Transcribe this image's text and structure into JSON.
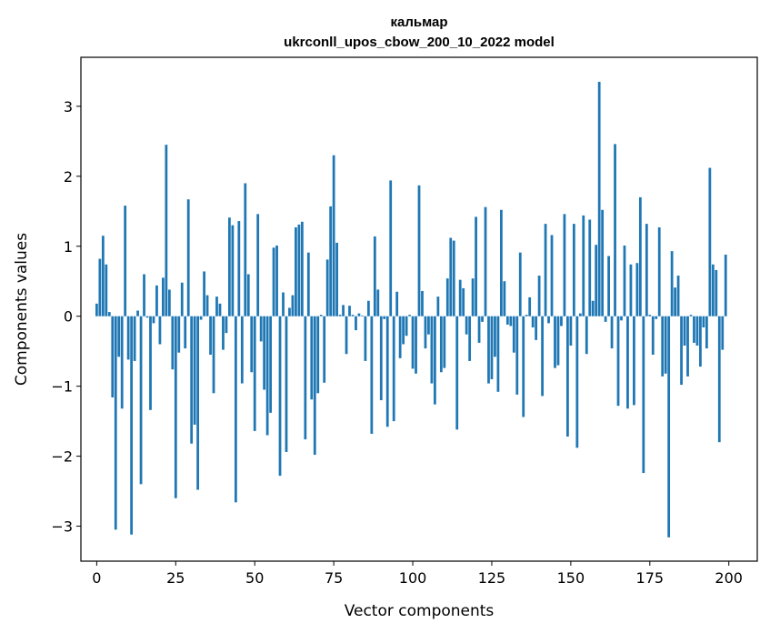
{
  "chart_data": {
    "type": "bar",
    "title": "кальмар",
    "subtitle": "ukrconll_upos_cbow_200_10_2022 model",
    "xlabel": "Vector components",
    "ylabel": "Components values",
    "xlim": [
      -5,
      209
    ],
    "ylim": [
      -3.5,
      3.7
    ],
    "x_ticks": [
      0,
      25,
      50,
      75,
      100,
      125,
      150,
      175,
      200
    ],
    "y_ticks": [
      -3,
      -2,
      -1,
      0,
      1,
      2,
      3
    ],
    "grid": false,
    "color": "#1f77b4",
    "values": [
      0.18,
      0.82,
      1.15,
      0.74,
      0.06,
      -1.16,
      -3.05,
      -0.58,
      -1.32,
      1.58,
      -0.62,
      -3.12,
      -0.64,
      0.08,
      -2.4,
      0.6,
      -0.02,
      -1.34,
      -0.1,
      0.44,
      -0.4,
      0.55,
      2.45,
      0.38,
      -0.76,
      -2.6,
      -0.52,
      0.48,
      -0.46,
      1.67,
      -1.82,
      -1.55,
      -2.48,
      -0.05,
      0.64,
      0.3,
      -0.55,
      -1.1,
      0.28,
      0.18,
      -0.48,
      -0.24,
      1.41,
      1.3,
      -2.66,
      1.36,
      -0.96,
      1.9,
      0.6,
      -0.8,
      -1.64,
      1.46,
      -0.36,
      -1.05,
      -1.7,
      -1.38,
      0.98,
      1.01,
      -2.28,
      0.34,
      -1.94,
      0.12,
      0.3,
      1.27,
      1.31,
      1.35,
      -1.76,
      0.91,
      -1.19,
      -1.98,
      -1.1,
      0.02,
      -0.95,
      0.81,
      1.57,
      2.3,
      1.05,
      0.02,
      0.16,
      -0.54,
      0.15,
      0.02,
      -0.2,
      0.04,
      0.01,
      -0.64,
      0.22,
      -1.68,
      1.14,
      0.38,
      -1.2,
      -0.04,
      -1.58,
      1.94,
      -1.5,
      0.35,
      -0.6,
      -0.4,
      -0.28,
      0.02,
      -0.75,
      -0.82,
      1.87,
      0.36,
      -0.46,
      -0.26,
      -0.96,
      -1.26,
      0.28,
      -0.8,
      -0.74,
      0.54,
      1.12,
      1.08,
      -1.62,
      0.52,
      0.4,
      -0.26,
      -0.64,
      0.54,
      1.42,
      -0.38,
      -0.08,
      1.56,
      -0.96,
      -0.9,
      -0.58,
      -1.08,
      1.52,
      0.5,
      -0.12,
      -0.14,
      -0.52,
      -1.12,
      0.91,
      -1.44,
      0.02,
      0.27,
      -0.16,
      -0.34,
      0.58,
      -1.14,
      1.32,
      -0.1,
      1.16,
      -0.74,
      -0.7,
      -0.14,
      1.46,
      -1.72,
      -0.42,
      1.32,
      -1.88,
      0.04,
      1.44,
      -0.54,
      1.38,
      0.22,
      1.02,
      3.35,
      1.52,
      -0.08,
      0.86,
      -0.46,
      2.46,
      -1.28,
      -0.06,
      1.01,
      -1.32,
      0.74,
      -1.27,
      0.76,
      1.7,
      -2.24,
      1.32,
      0.02,
      -0.55,
      -0.04,
      1.27,
      -0.86,
      -0.82,
      -3.16,
      0.93,
      0.41,
      0.58,
      -0.98,
      -0.42,
      -0.86,
      0.02,
      -0.38,
      -0.42,
      -0.72,
      -0.16,
      -0.46,
      2.12,
      0.74,
      0.66,
      -1.8,
      -0.48,
      0.88
    ]
  }
}
